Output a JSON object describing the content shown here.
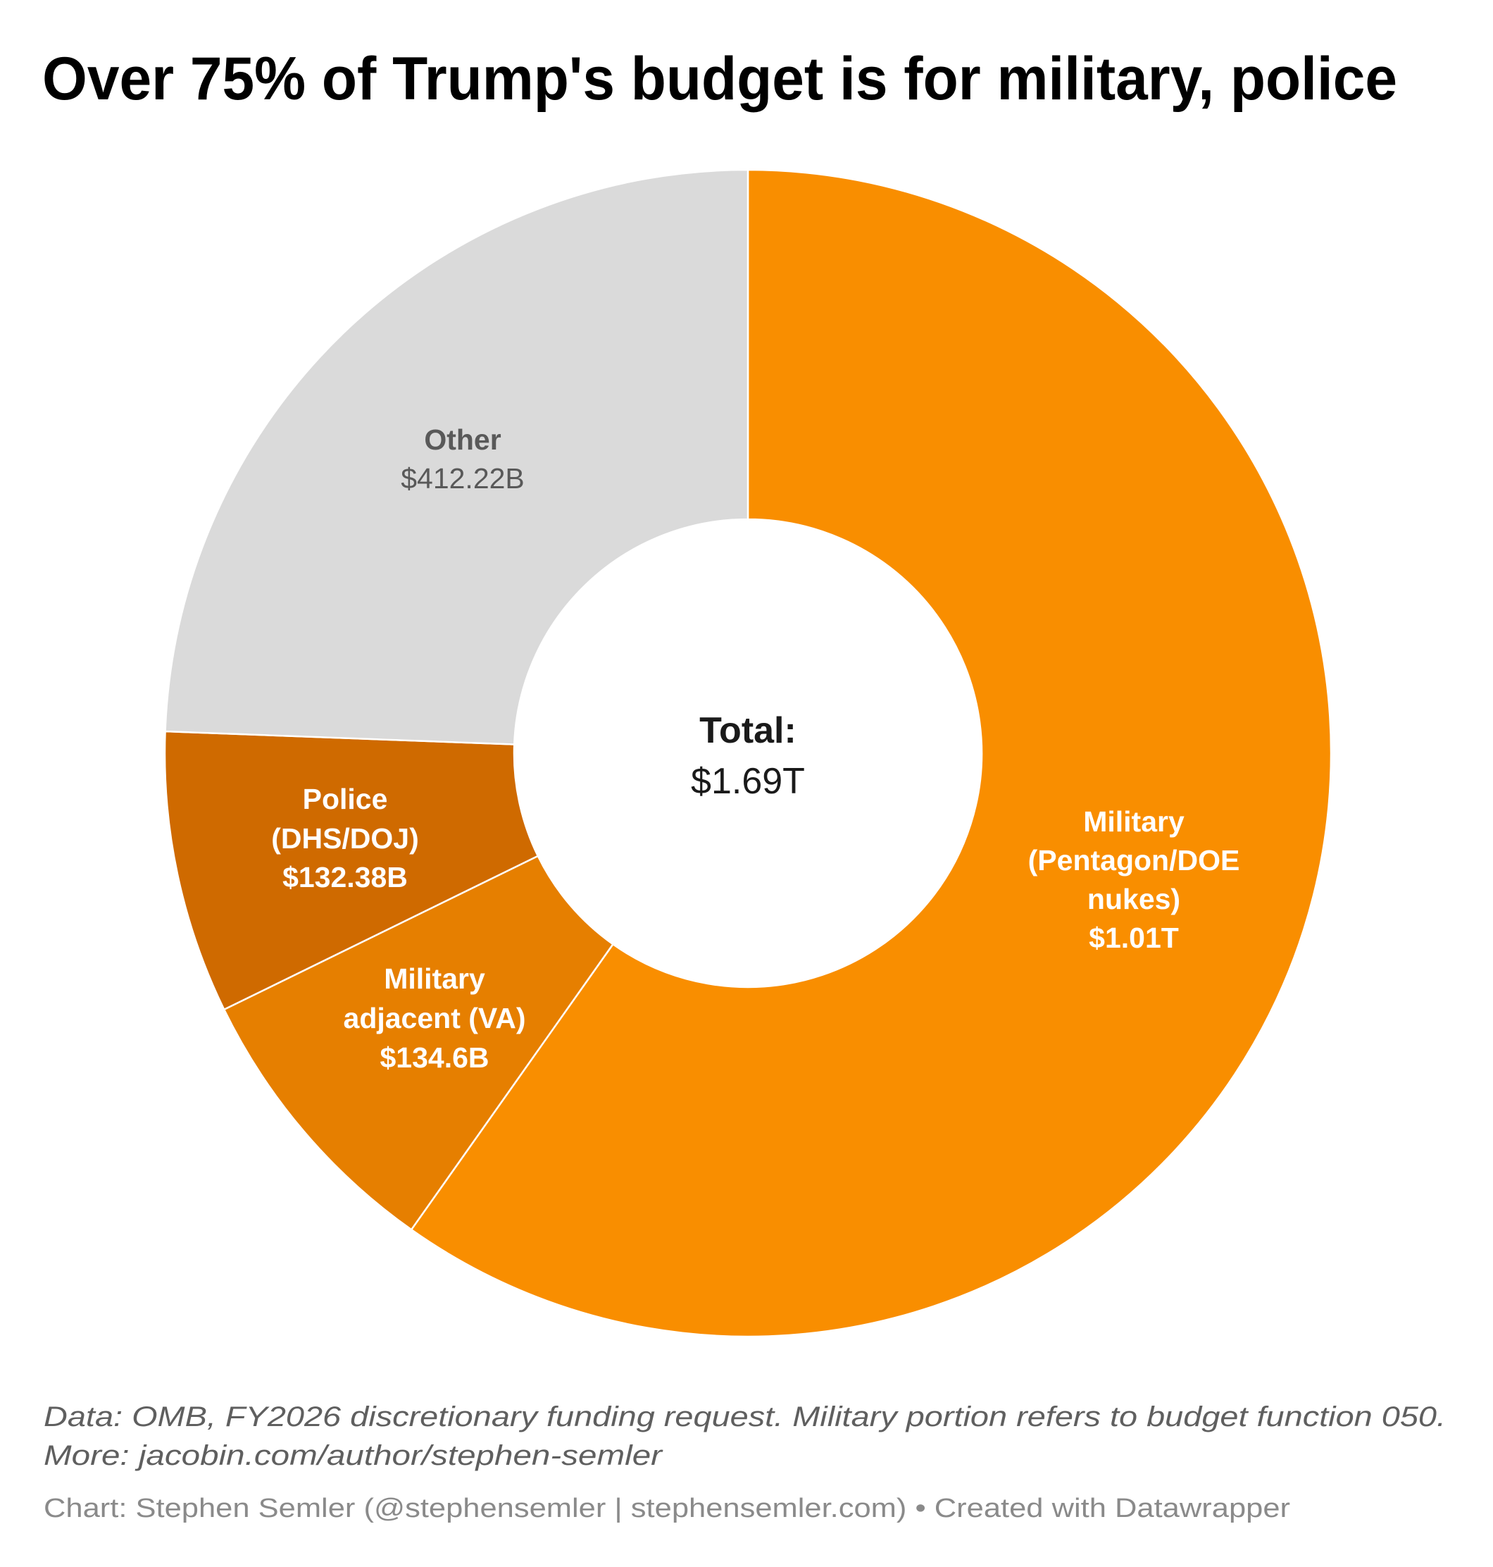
{
  "chart_data": {
    "type": "pie",
    "variant": "donut",
    "title": "Over 75% of Trump's budget is for military, police",
    "center_label": {
      "heading": "Total:",
      "value": "$1.69T"
    },
    "unit": "billion USD",
    "start_angle_deg": 0,
    "direction": "clockwise",
    "slices": [
      {
        "name": "Military (Pentagon/DOE nukes)",
        "label_lines": [
          "Military",
          "(Pentagon/DOE",
          "nukes)"
        ],
        "value": 1010,
        "value_label": "$1.01T",
        "color": "#f98e00",
        "text_color": "#ffffff"
      },
      {
        "name": "Military adjacent (VA)",
        "label_lines": [
          "Military",
          "adjacent (VA)"
        ],
        "value": 134.6,
        "value_label": "$134.6B",
        "color": "#e67f00",
        "text_color": "#ffffff"
      },
      {
        "name": "Police (DHS/DOJ)",
        "label_lines": [
          "Police",
          "(DHS/DOJ)"
        ],
        "value": 132.38,
        "value_label": "$132.38B",
        "color": "#cf6a00",
        "text_color": "#ffffff"
      },
      {
        "name": "Other",
        "label_lines": [
          "Other"
        ],
        "value": 412.22,
        "value_label": "$412.22B",
        "color": "#dadada",
        "text_color": "#595959"
      }
    ],
    "notes": [
      "Data: OMB, FY2026 discretionary funding request. Military portion refers to budget function 050.",
      "More: jacobin.com/author/stephen-semler"
    ],
    "credit": "Chart: Stephen Semler (@stephensemler | stephensemler.com) • Created with Datawrapper"
  }
}
